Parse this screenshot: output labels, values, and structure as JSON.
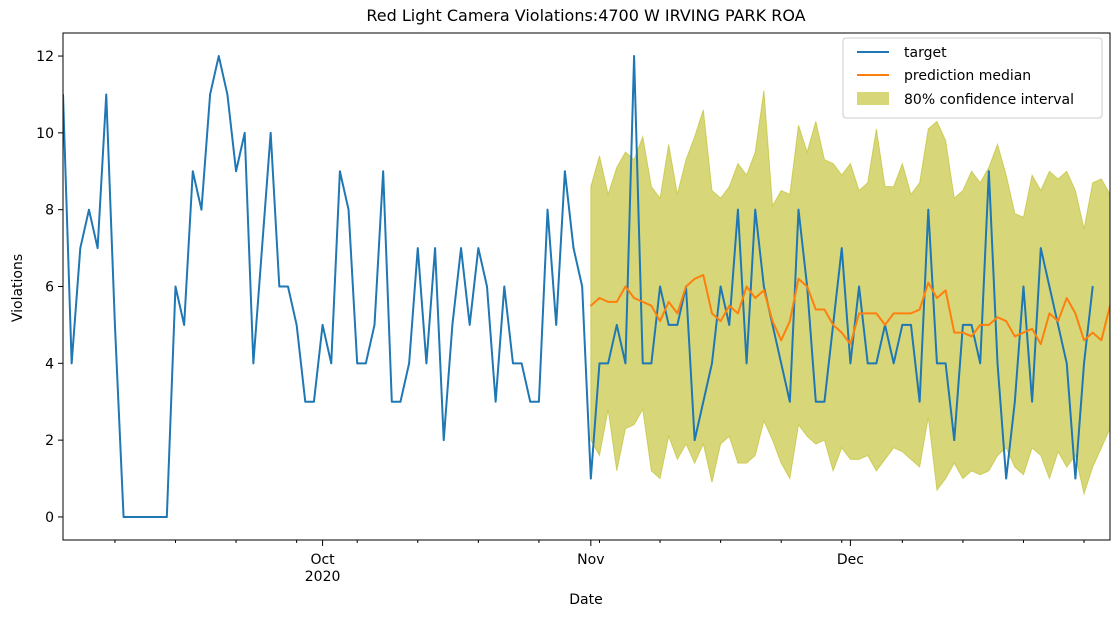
{
  "chart_data": {
    "type": "line",
    "title": "Red Light Camera Violations:4700 W IRVING PARK ROA",
    "xlabel": "Date",
    "ylabel": "Violations",
    "ylim": [
      -0.6,
      12.6
    ],
    "xlim": [
      "2020-09-01",
      "2020-12-31"
    ],
    "y_ticks": [
      0,
      2,
      4,
      6,
      8,
      10,
      12
    ],
    "x_ticks": [
      {
        "date": "2020-10-01",
        "label": "Oct",
        "sublabel": "2020"
      },
      {
        "date": "2020-11-01",
        "label": "Nov",
        "sublabel": ""
      },
      {
        "date": "2020-12-01",
        "label": "Dec",
        "sublabel": ""
      }
    ],
    "legend_position": "top-right",
    "grid": false,
    "series": [
      {
        "name": "target",
        "color": "#1f77b4",
        "start_date": "2020-09-01",
        "values": [
          11,
          4,
          7,
          8,
          7,
          11,
          5,
          0,
          0,
          0,
          0,
          0,
          0,
          6,
          5,
          9,
          8,
          11,
          12,
          11,
          9,
          10,
          4,
          7,
          10,
          6,
          6,
          5,
          3,
          3,
          5,
          4,
          9,
          8,
          4,
          4,
          5,
          9,
          3,
          3,
          4,
          7,
          4,
          7,
          2,
          5,
          7,
          5,
          7,
          6,
          3,
          6,
          4,
          4,
          3,
          3,
          8,
          5,
          9,
          7,
          6,
          1,
          4,
          4,
          5,
          4,
          12,
          4,
          4,
          6,
          5,
          5,
          6,
          2,
          3,
          4,
          6,
          5,
          8,
          4,
          8,
          6,
          5,
          4,
          3,
          8,
          6,
          3,
          3,
          5,
          7,
          4,
          6,
          4,
          4,
          5,
          4,
          5,
          5,
          3,
          8,
          4,
          4,
          2,
          5,
          5,
          4,
          9,
          4,
          1,
          3,
          6,
          3,
          7,
          6,
          5,
          4,
          1,
          4,
          6
        ]
      },
      {
        "name": "prediction median",
        "color": "#ff7f0e",
        "start_date": "2020-11-01",
        "values": [
          5.5,
          5.7,
          5.6,
          5.6,
          6.0,
          5.7,
          5.6,
          5.5,
          5.1,
          5.6,
          5.3,
          6.0,
          6.2,
          6.3,
          5.3,
          5.1,
          5.5,
          5.3,
          6.0,
          5.7,
          5.9,
          5.1,
          4.6,
          5.1,
          6.2,
          6.0,
          5.4,
          5.4,
          5.0,
          4.8,
          4.5,
          5.3,
          5.3,
          5.3,
          5.0,
          5.3,
          5.3,
          5.3,
          5.4,
          6.1,
          5.7,
          5.9,
          4.8,
          4.8,
          4.7,
          5.0,
          5.0,
          5.2,
          5.1,
          4.7,
          4.8,
          4.9,
          4.5,
          5.3,
          5.1,
          5.7,
          5.3,
          4.6,
          4.8,
          4.6,
          5.5
        ]
      }
    ],
    "interval": {
      "name": "80% confidence interval",
      "color": "#bcbd22",
      "opacity": 0.6,
      "start_date": "2020-11-01",
      "upper": [
        8.6,
        9.4,
        8.4,
        9.1,
        9.5,
        9.3,
        9.9,
        8.6,
        8.3,
        9.7,
        8.4,
        9.3,
        9.9,
        10.6,
        8.5,
        8.3,
        8.6,
        9.2,
        8.9,
        9.5,
        11.1,
        8.1,
        8.5,
        8.4,
        10.2,
        9.5,
        10.3,
        9.3,
        9.2,
        8.9,
        9.2,
        8.5,
        8.7,
        10.1,
        8.6,
        8.6,
        9.2,
        8.4,
        8.7,
        10.1,
        10.3,
        9.8,
        8.3,
        8.5,
        9.0,
        8.7,
        9.1,
        9.7,
        8.9,
        7.9,
        7.8,
        8.9,
        8.5,
        9.0,
        8.8,
        9.0,
        8.5,
        7.5,
        8.7,
        8.8,
        8.4
      ],
      "lower": [
        2.0,
        1.6,
        2.8,
        1.2,
        2.3,
        2.4,
        2.8,
        1.2,
        1.0,
        2.1,
        1.5,
        1.9,
        1.4,
        1.9,
        0.9,
        1.9,
        2.1,
        1.4,
        1.4,
        1.6,
        2.5,
        2.0,
        1.4,
        1.0,
        2.4,
        2.1,
        1.9,
        2.0,
        1.2,
        1.8,
        1.5,
        1.5,
        1.6,
        1.2,
        1.5,
        1.8,
        1.7,
        1.5,
        1.3,
        2.6,
        0.7,
        1.0,
        1.4,
        1.0,
        1.2,
        1.1,
        1.2,
        1.6,
        1.8,
        1.3,
        1.1,
        1.8,
        1.6,
        1.0,
        1.7,
        1.3,
        1.6,
        0.6,
        1.3,
        1.8,
        2.3
      ]
    }
  }
}
